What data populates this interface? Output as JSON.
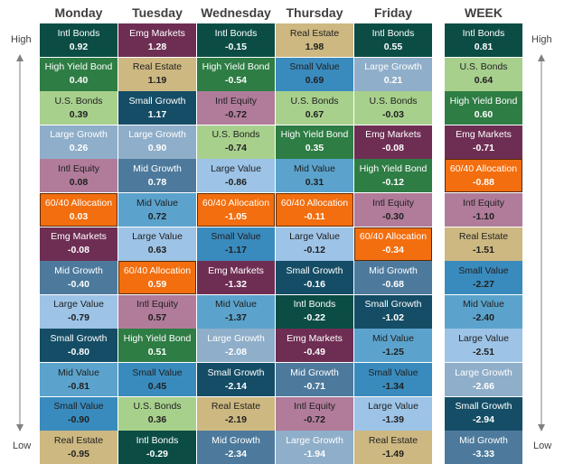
{
  "chart_data": {
    "type": "table",
    "title": "",
    "axis_labels": {
      "high": "High",
      "low": "Low"
    },
    "columns": [
      {
        "name": "Monday",
        "cells": [
          {
            "label": "Intl Bonds",
            "value": "0.92"
          },
          {
            "label": "High Yield Bond",
            "value": "0.40"
          },
          {
            "label": "U.S. Bonds",
            "value": "0.39"
          },
          {
            "label": "Large Growth",
            "value": "0.26"
          },
          {
            "label": "Intl Equity",
            "value": "0.08"
          },
          {
            "label": "60/40 Allocation",
            "value": "0.03"
          },
          {
            "label": "Emg Markets",
            "value": "-0.08"
          },
          {
            "label": "Mid Growth",
            "value": "-0.40"
          },
          {
            "label": "Large Value",
            "value": "-0.79"
          },
          {
            "label": "Small Growth",
            "value": "-0.80"
          },
          {
            "label": "Mid Value",
            "value": "-0.81"
          },
          {
            "label": "Small Value",
            "value": "-0.90"
          },
          {
            "label": "Real Estate",
            "value": "-0.95"
          }
        ]
      },
      {
        "name": "Tuesday",
        "cells": [
          {
            "label": "Emg Markets",
            "value": "1.28"
          },
          {
            "label": "Real Estate",
            "value": "1.19"
          },
          {
            "label": "Small Growth",
            "value": "1.17"
          },
          {
            "label": "Large Growth",
            "value": "0.90"
          },
          {
            "label": "Mid Growth",
            "value": "0.78"
          },
          {
            "label": "Mid Value",
            "value": "0.72"
          },
          {
            "label": "Large Value",
            "value": "0.63"
          },
          {
            "label": "60/40 Allocation",
            "value": "0.59"
          },
          {
            "label": "Intl Equity",
            "value": "0.57"
          },
          {
            "label": "High Yield Bond",
            "value": "0.51"
          },
          {
            "label": "Small Value",
            "value": "0.45"
          },
          {
            "label": "U.S. Bonds",
            "value": "0.36"
          },
          {
            "label": "Intl Bonds",
            "value": "-0.29"
          }
        ]
      },
      {
        "name": "Wednesday",
        "cells": [
          {
            "label": "Intl Bonds",
            "value": "-0.15"
          },
          {
            "label": "High Yield Bond",
            "value": "-0.54"
          },
          {
            "label": "Intl Equity",
            "value": "-0.72"
          },
          {
            "label": "U.S. Bonds",
            "value": "-0.74"
          },
          {
            "label": "Large Value",
            "value": "-0.86"
          },
          {
            "label": "60/40 Allocation",
            "value": "-1.05"
          },
          {
            "label": "Small Value",
            "value": "-1.17"
          },
          {
            "label": "Emg Markets",
            "value": "-1.32"
          },
          {
            "label": "Mid Value",
            "value": "-1.37"
          },
          {
            "label": "Large Growth",
            "value": "-2.08"
          },
          {
            "label": "Small Growth",
            "value": "-2.14"
          },
          {
            "label": "Real Estate",
            "value": "-2.19"
          },
          {
            "label": "Mid Growth",
            "value": "-2.34"
          }
        ]
      },
      {
        "name": "Thursday",
        "cells": [
          {
            "label": "Real Estate",
            "value": "1.98"
          },
          {
            "label": "Small Value",
            "value": "0.69"
          },
          {
            "label": "U.S. Bonds",
            "value": "0.67"
          },
          {
            "label": "High Yield Bond",
            "value": "0.35"
          },
          {
            "label": "Mid Value",
            "value": "0.31"
          },
          {
            "label": "60/40 Allocation",
            "value": "-0.11"
          },
          {
            "label": "Large Value",
            "value": "-0.12"
          },
          {
            "label": "Small Growth",
            "value": "-0.16"
          },
          {
            "label": "Intl Bonds",
            "value": "-0.22"
          },
          {
            "label": "Emg Markets",
            "value": "-0.49"
          },
          {
            "label": "Mid Growth",
            "value": "-0.71"
          },
          {
            "label": "Intl Equity",
            "value": "-0.72"
          },
          {
            "label": "Large Growth",
            "value": "-1.94"
          }
        ]
      },
      {
        "name": "Friday",
        "cells": [
          {
            "label": "Intl Bonds",
            "value": "0.55"
          },
          {
            "label": "Large Growth",
            "value": "0.21"
          },
          {
            "label": "U.S. Bonds",
            "value": "-0.03"
          },
          {
            "label": "Emg Markets",
            "value": "-0.08"
          },
          {
            "label": "High Yield Bond",
            "value": "-0.12"
          },
          {
            "label": "Intl Equity",
            "value": "-0.30"
          },
          {
            "label": "60/40 Allocation",
            "value": "-0.34"
          },
          {
            "label": "Mid Growth",
            "value": "-0.68"
          },
          {
            "label": "Small Growth",
            "value": "-1.02"
          },
          {
            "label": "Mid Value",
            "value": "-1.25"
          },
          {
            "label": "Small Value",
            "value": "-1.34"
          },
          {
            "label": "Large Value",
            "value": "-1.39"
          },
          {
            "label": "Real Estate",
            "value": "-1.49"
          }
        ]
      },
      {
        "name": "WEEK",
        "cells": [
          {
            "label": "Intl Bonds",
            "value": "0.81"
          },
          {
            "label": "U.S. Bonds",
            "value": "0.64"
          },
          {
            "label": "High Yield Bond",
            "value": "0.60"
          },
          {
            "label": "Emg Markets",
            "value": "-0.71"
          },
          {
            "label": "60/40 Allocation",
            "value": "-0.88"
          },
          {
            "label": "Intl Equity",
            "value": "-1.10"
          },
          {
            "label": "Real Estate",
            "value": "-1.51"
          },
          {
            "label": "Small Value",
            "value": "-2.27"
          },
          {
            "label": "Mid Value",
            "value": "-2.40"
          },
          {
            "label": "Large Value",
            "value": "-2.51"
          },
          {
            "label": "Large Growth",
            "value": "-2.66"
          },
          {
            "label": "Small Growth",
            "value": "-2.94"
          },
          {
            "label": "Mid Growth",
            "value": "-3.33"
          }
        ]
      }
    ],
    "asset_colors": {
      "Intl Bonds": {
        "bg": "#0b4d45",
        "fg": "#ffffff"
      },
      "High Yield Bond": {
        "bg": "#2e7d44",
        "fg": "#ffffff"
      },
      "U.S. Bonds": {
        "bg": "#a8d08d",
        "fg": "#1f1f1f"
      },
      "Large Growth": {
        "bg": "#8faec9",
        "fg": "#ffffff"
      },
      "Intl Equity": {
        "bg": "#b07c9a",
        "fg": "#1f1f1f"
      },
      "60/40 Allocation": {
        "bg": "#f36e0e",
        "fg": "#ffffff"
      },
      "Emg Markets": {
        "bg": "#6e2e53",
        "fg": "#ffffff"
      },
      "Mid Growth": {
        "bg": "#4d7a9c",
        "fg": "#ffffff"
      },
      "Large Value": {
        "bg": "#9dc3e6",
        "fg": "#1f1f1f"
      },
      "Small Growth": {
        "bg": "#154d66",
        "fg": "#ffffff"
      },
      "Mid Value": {
        "bg": "#5ba3cc",
        "fg": "#1f1f1f"
      },
      "Small Value": {
        "bg": "#3a8bbd",
        "fg": "#1f1f1f"
      },
      "Real Estate": {
        "bg": "#cdb882",
        "fg": "#1f1f1f"
      }
    },
    "highlight": "60/40 Allocation"
  }
}
